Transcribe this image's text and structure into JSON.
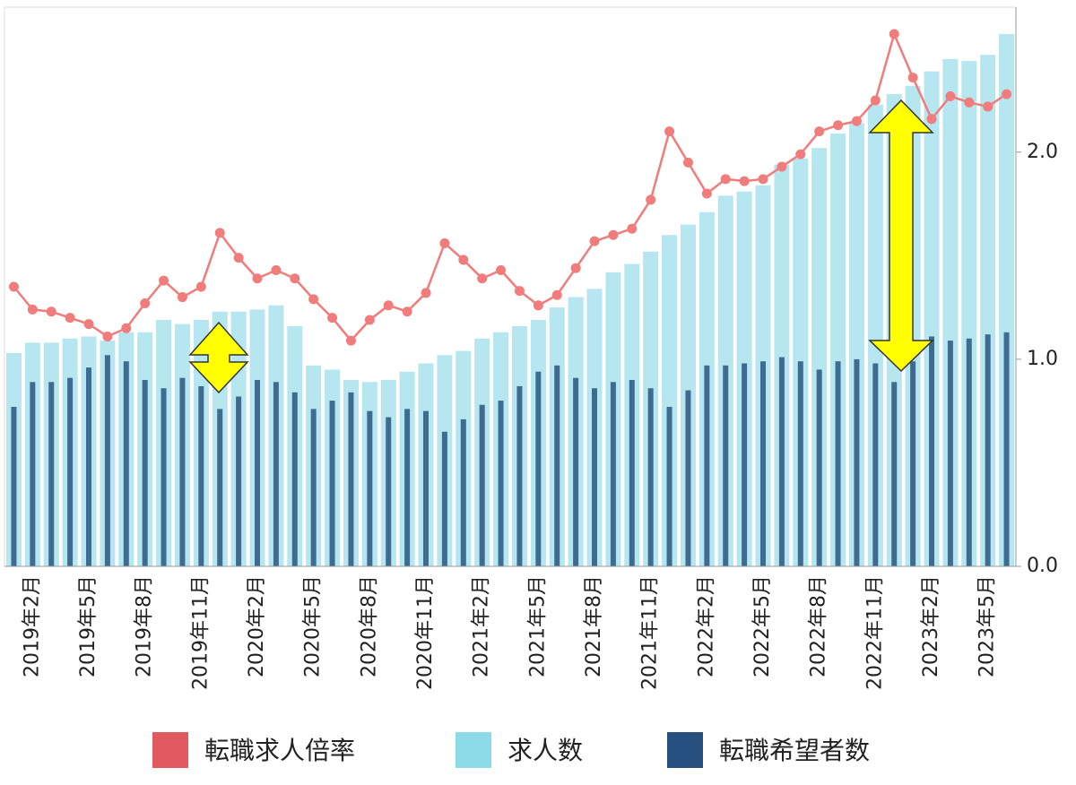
{
  "chart_data": {
    "type": "bar",
    "categories": [
      null,
      "2019年2月",
      null,
      null,
      "2019年5月",
      null,
      null,
      "2019年8月",
      null,
      null,
      "2019年11月",
      null,
      null,
      "2020年2月",
      null,
      null,
      "2020年5月",
      null,
      null,
      "2020年8月",
      null,
      null,
      "2020年11月",
      null,
      null,
      "2021年2月",
      null,
      null,
      "2021年5月",
      null,
      null,
      "2021年8月",
      null,
      null,
      "2021年11月",
      null,
      null,
      "2022年2月",
      null,
      null,
      "2022年5月",
      null,
      null,
      "2022年8月",
      null,
      null,
      "2022年11月",
      null,
      null,
      "2023年2月",
      null,
      null,
      "2023年5月",
      null
    ],
    "series": [
      {
        "name": "転職求人倍率",
        "type": "line",
        "axis": "y2",
        "color": "#f07c7c",
        "legend_color": "#e05a5f",
        "values": [
          1.35,
          1.24,
          1.23,
          1.2,
          1.17,
          1.11,
          1.15,
          1.27,
          1.38,
          1.3,
          1.35,
          1.61,
          1.49,
          1.39,
          1.43,
          1.39,
          1.29,
          1.2,
          1.09,
          1.19,
          1.26,
          1.23,
          1.32,
          1.56,
          1.48,
          1.39,
          1.43,
          1.33,
          1.26,
          1.31,
          1.44,
          1.57,
          1.6,
          1.63,
          1.77,
          2.1,
          1.95,
          1.8,
          1.87,
          1.86,
          1.87,
          1.93,
          1.99,
          2.1,
          2.13,
          2.15,
          2.25,
          2.57,
          2.36,
          2.16,
          2.27,
          2.24,
          2.22,
          2.28
        ]
      },
      {
        "name": "求人数",
        "type": "bar",
        "color": "#b6e6f0",
        "legend_color": "#8ddbe9",
        "values": [
          1.03,
          1.08,
          1.08,
          1.1,
          1.11,
          1.09,
          1.13,
          1.13,
          1.19,
          1.17,
          1.19,
          1.23,
          1.23,
          1.24,
          1.26,
          1.16,
          0.97,
          0.95,
          0.9,
          0.89,
          0.9,
          0.94,
          0.98,
          1.02,
          1.04,
          1.1,
          1.13,
          1.16,
          1.19,
          1.25,
          1.3,
          1.34,
          1.42,
          1.46,
          1.52,
          1.6,
          1.65,
          1.71,
          1.79,
          1.81,
          1.84,
          1.94,
          1.97,
          2.02,
          2.09,
          2.14,
          2.23,
          2.28,
          2.32,
          2.39,
          2.45,
          2.44,
          2.47,
          2.57
        ]
      },
      {
        "name": "転職希望者数",
        "type": "bar",
        "color": "#3e6b90",
        "legend_color": "#26507f",
        "values": [
          0.77,
          0.89,
          0.89,
          0.91,
          0.96,
          1.02,
          0.99,
          0.9,
          0.86,
          0.91,
          0.87,
          0.76,
          0.82,
          0.9,
          0.89,
          0.84,
          0.76,
          0.8,
          0.84,
          0.75,
          0.72,
          0.76,
          0.75,
          0.65,
          0.71,
          0.78,
          0.8,
          0.87,
          0.94,
          0.97,
          0.91,
          0.86,
          0.89,
          0.9,
          0.86,
          0.77,
          0.85,
          0.97,
          0.97,
          0.98,
          0.99,
          1.01,
          0.99,
          0.95,
          0.99,
          1.0,
          0.98,
          0.89,
          0.99,
          1.11,
          1.09,
          1.1,
          1.12,
          1.13
        ]
      }
    ],
    "ylim": [
      0,
      2.7
    ],
    "y2lim": [
      0,
      2.7
    ],
    "y2ticks": [
      {
        "value": 0,
        "label": "0.0"
      },
      {
        "value": 1,
        "label": "1.0"
      },
      {
        "value": 2,
        "label": "2.0"
      }
    ]
  }
}
